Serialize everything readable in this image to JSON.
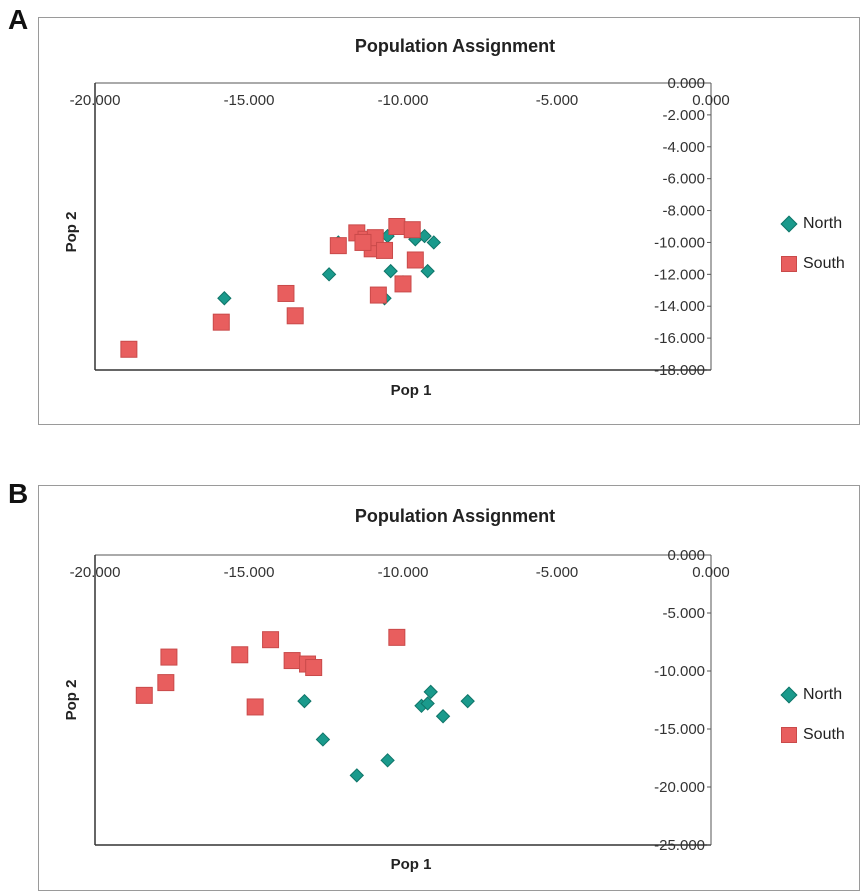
{
  "panels": [
    {
      "letter": "A"
    },
    {
      "letter": "B"
    }
  ],
  "legend": {
    "north_label": "North",
    "south_label": "South"
  },
  "colors": {
    "north": "#1a9a8c",
    "south": "#e85e5e"
  },
  "chart_data": [
    {
      "type": "scatter",
      "title": "Population Assignment",
      "xlabel": "Pop 1",
      "ylabel": "Pop 2",
      "xlim": [
        -20,
        0
      ],
      "ylim": [
        -18,
        0
      ],
      "x_ticks": [
        -20,
        -15,
        -10,
        -5,
        0
      ],
      "x_tick_labels": [
        "-20.000",
        "-15.000",
        "-10.000",
        "-5.000",
        "0.000"
      ],
      "y_ticks": [
        0,
        -2,
        -4,
        -6,
        -8,
        -10,
        -12,
        -14,
        -16,
        -18
      ],
      "y_tick_labels": [
        "0.000",
        "-2.000",
        "-4.000",
        "-6.000",
        "-8.000",
        "-10.000",
        "-12.000",
        "-14.000",
        "-16.000",
        "-18.000"
      ],
      "legend_position": "right",
      "series": [
        {
          "name": "North",
          "marker": "diamond",
          "x": [
            -15.8,
            -12.4,
            -12.1,
            -10.6,
            -10.5,
            -10.4,
            -10.0,
            -9.6,
            -9.3,
            -9.2,
            -9.0
          ],
          "y": [
            -13.5,
            -12.0,
            -10.0,
            -13.5,
            -9.6,
            -11.8,
            -12.5,
            -9.8,
            -9.6,
            -11.8,
            -10.0
          ]
        },
        {
          "name": "South",
          "marker": "square",
          "x": [
            -18.9,
            -15.9,
            -13.8,
            -13.5,
            -12.1,
            -11.5,
            -11.2,
            -11.0,
            -10.9,
            -10.6,
            -10.2,
            -10.0,
            -9.7,
            -9.6,
            -10.8,
            -11.3
          ],
          "y": [
            -16.7,
            -15.0,
            -13.2,
            -14.6,
            -10.2,
            -9.4,
            -9.8,
            -10.4,
            -9.7,
            -10.5,
            -9.0,
            -12.6,
            -9.2,
            -11.1,
            -13.3,
            -10.0
          ]
        }
      ]
    },
    {
      "type": "scatter",
      "title": "Population Assignment",
      "xlabel": "Pop 1",
      "ylabel": "Pop 2",
      "xlim": [
        -20,
        0
      ],
      "ylim": [
        -25,
        0
      ],
      "x_ticks": [
        -20,
        -15,
        -10,
        -5,
        0
      ],
      "x_tick_labels": [
        "-20.000",
        "-15.000",
        "-10.000",
        "-5.000",
        "0.000"
      ],
      "y_ticks": [
        0,
        -5,
        -10,
        -15,
        -20,
        -25
      ],
      "y_tick_labels": [
        "0.000",
        "-5.000",
        "-10.000",
        "-15.000",
        "-20.000",
        "-25.000"
      ],
      "legend_position": "right",
      "series": [
        {
          "name": "North",
          "marker": "diamond",
          "x": [
            -13.2,
            -12.6,
            -11.5,
            -10.5,
            -9.4,
            -9.2,
            -9.1,
            -8.7,
            -7.9
          ],
          "y": [
            -12.6,
            -15.9,
            -19.0,
            -17.7,
            -13.0,
            -12.8,
            -11.8,
            -13.9,
            -12.6
          ]
        },
        {
          "name": "South",
          "marker": "square",
          "x": [
            -18.4,
            -17.7,
            -17.6,
            -15.3,
            -14.8,
            -14.3,
            -13.6,
            -13.1,
            -12.9,
            -10.2
          ],
          "y": [
            -12.1,
            -11.0,
            -8.8,
            -8.6,
            -13.1,
            -7.3,
            -9.1,
            -9.4,
            -9.7,
            -7.1
          ]
        }
      ]
    }
  ]
}
